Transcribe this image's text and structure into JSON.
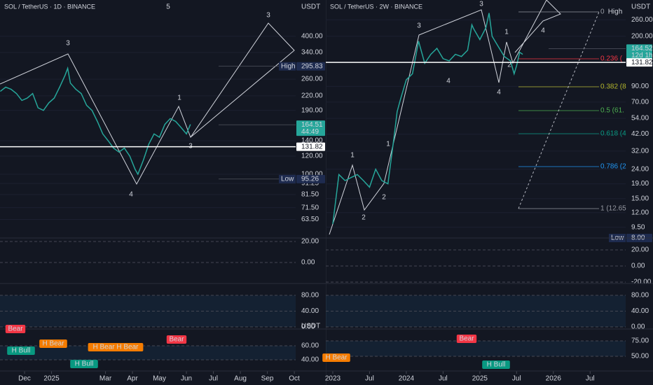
{
  "chart_data": [
    {
      "type": "line",
      "title": "SOL / TetherUS · 1D · BINANCE",
      "currency": "USDT",
      "color": "#26a69a",
      "log": true,
      "x": [
        -0.9,
        -0.7,
        -0.5,
        -0.3,
        -0.1,
        0.1,
        0.3,
        0.5,
        0.7,
        0.9,
        1.1,
        1.3,
        1.5,
        1.6,
        1.7,
        1.9,
        2.1,
        2.3,
        2.5,
        2.7,
        2.9,
        3.1,
        3.3,
        3.5,
        3.7,
        3.9,
        4.1,
        4.2,
        4.4,
        4.6,
        4.8,
        5.0,
        5.2,
        5.4,
        5.6,
        5.8,
        6.0,
        6.15
      ],
      "values": [
        230,
        240,
        235,
        225,
        210,
        215,
        225,
        195,
        190,
        205,
        215,
        240,
        270,
        290,
        250,
        235,
        225,
        200,
        190,
        170,
        150,
        140,
        130,
        125,
        130,
        120,
        105,
        100,
        115,
        135,
        150,
        145,
        165,
        175,
        170,
        160,
        150,
        165
      ],
      "xlim": [
        -0.91,
        10.05
      ],
      "ylim": [
        52.7,
        576
      ],
      "xticks": [
        {
          "value": 0,
          "label": "Dec"
        },
        {
          "value": 1,
          "label": "2025"
        },
        {
          "value": 3,
          "label": "Mar"
        },
        {
          "value": 4,
          "label": "Apr"
        },
        {
          "value": 5,
          "label": "May"
        },
        {
          "value": 6,
          "label": "Jun"
        },
        {
          "value": 7,
          "label": "Jul"
        },
        {
          "value": 8,
          "label": "Aug"
        },
        {
          "value": 9,
          "label": "Sep"
        },
        {
          "value": 10,
          "label": "Oct"
        }
      ],
      "yticks": [
        {
          "value": 400,
          "label": "400.00"
        },
        {
          "value": 340,
          "label": "340.00"
        },
        {
          "value": 260,
          "label": "260.00"
        },
        {
          "value": 220,
          "label": "220.00"
        },
        {
          "value": 190,
          "label": "190.00"
        },
        {
          "value": 140,
          "label": "140.00"
        },
        {
          "value": 120,
          "label": "120.00"
        },
        {
          "value": 100,
          "label": "100.00"
        },
        {
          "value": 91.25,
          "label": "91.25"
        },
        {
          "value": 81.5,
          "label": "81.50"
        },
        {
          "value": 71.5,
          "label": "71.50"
        },
        {
          "value": 63.5,
          "label": "63.50"
        }
      ],
      "price_tags": [
        {
          "name": "High",
          "value": 295.83,
          "color": "#1e2b4f"
        },
        {
          "value": 164.51,
          "sub": "44:49",
          "color": "#26a69a"
        },
        {
          "value": 131.82,
          "color": "#ffffff"
        },
        {
          "name": "Low",
          "value": 95.26,
          "color": "#1e2b4f"
        }
      ],
      "annotations": [
        "5",
        "3",
        "4",
        "1",
        "3",
        "3"
      ],
      "badges": [
        {
          "text": "Bear",
          "color": "#f23645"
        },
        {
          "text": "H Bull",
          "color": "#089981"
        },
        {
          "text": "H Bear",
          "color": "#f57c00"
        },
        {
          "text": "H Bear H Bear",
          "color": "#f57c00"
        },
        {
          "text": "H Bull",
          "color": "#089981"
        },
        {
          "text": "Bear",
          "color": "#f23645"
        }
      ],
      "panes": [
        {
          "ylim": [
            -20,
            23.3
          ],
          "yticks": [
            {
              "value": 20,
              "label": "20.00"
            },
            {
              "value": 0,
              "label": "0.00"
            }
          ]
        },
        {
          "ylim": [
            -5.3,
            110
          ],
          "yticks": [
            {
              "value": 80,
              "label": "80.00"
            },
            {
              "value": 40,
              "label": "40.00"
            },
            {
              "value": 0,
              "label": "0.00"
            }
          ]
        },
        {
          "ylim": [
            24,
            84
          ],
          "yticks": [
            {
              "value": 60,
              "label": "60.00"
            },
            {
              "value": 40,
              "label": "40.00"
            }
          ]
        }
      ]
    },
    {
      "type": "line",
      "title": "SOL / TetherUS · 2W · BINANCE",
      "currency": "USDT",
      "color": "#26a69a",
      "log": true,
      "x": [
        0,
        1,
        2,
        3,
        4,
        5,
        6,
        7,
        8,
        9,
        10,
        10.5,
        11,
        12,
        13,
        14,
        15,
        16,
        17,
        18,
        19,
        20,
        21,
        22,
        22.7,
        23,
        24,
        25,
        25.5,
        26,
        27,
        28,
        29,
        29.6,
        30,
        30.5,
        31
      ],
      "values": [
        10,
        22,
        20,
        21,
        22,
        20,
        18,
        24,
        20,
        19,
        40,
        60,
        72,
        100,
        110,
        185,
        130,
        150,
        165,
        140,
        135,
        150,
        145,
        160,
        240,
        225,
        190,
        230,
        290,
        200,
        170,
        145,
        135,
        110,
        125,
        155,
        150
      ],
      "xlim": [
        -1.14,
        47.8
      ],
      "ylim": [
        8,
        357
      ],
      "xticks": [
        {
          "value": 0,
          "label": "2023"
        },
        {
          "value": 6,
          "label": "Jul"
        },
        {
          "value": 12,
          "label": "2024"
        },
        {
          "value": 18,
          "label": "Jul"
        },
        {
          "value": 24,
          "label": "2025"
        },
        {
          "value": 30,
          "label": "Jul"
        },
        {
          "value": 36,
          "label": "2026"
        },
        {
          "value": 42,
          "label": "Jul"
        }
      ],
      "yticks": [
        {
          "value": 260,
          "label": "260.00"
        },
        {
          "value": 200,
          "label": "200.00"
        },
        {
          "value": 90,
          "label": "90.00"
        },
        {
          "value": 70,
          "label": "70.00"
        },
        {
          "value": 54,
          "label": "54.00"
        },
        {
          "value": 42,
          "label": "42.00"
        },
        {
          "value": 32,
          "label": "32.00"
        },
        {
          "value": 24,
          "label": "24.00"
        },
        {
          "value": 19,
          "label": "19.00"
        },
        {
          "value": 15,
          "label": "15.00"
        },
        {
          "value": 12,
          "label": "12.00"
        },
        {
          "value": 9.5,
          "label": "9.50"
        }
      ],
      "price_tags": [
        {
          "value": 164.52,
          "sub": "12d 1h",
          "color": "#26a69a"
        },
        {
          "value": 131.82,
          "color": "#ffffff"
        },
        {
          "name": "Low",
          "value": {
            "value": 8,
            "label": "8.00"
          },
          "color": "#1e2b4f"
        }
      ],
      "annotations": [
        "3",
        "1",
        "2",
        "2",
        "3",
        "1",
        "4",
        "4",
        "1",
        "2",
        "4",
        "High"
      ],
      "fib_labels": [
        "0",
        "0.236 (",
        "0.382 (8",
        "0.5 (61.",
        "0.618 (4",
        "0.786 (2",
        "1 (12.65"
      ],
      "badges": [
        {
          "text": "H Bear",
          "color": "#f57c00"
        },
        {
          "text": "Bear",
          "color": "#f23645"
        },
        {
          "text": "H Bull",
          "color": "#089981"
        }
      ],
      "panes": [
        {
          "ylim": [
            -21.7,
            34.8
          ],
          "yticks": [
            {
              "value": 20,
              "label": "20.00"
            },
            {
              "value": 0,
              "label": "0.00"
            },
            {
              "value": -20,
              "label": "-20.00"
            }
          ]
        },
        {
          "ylim": [
            -5.3,
            110
          ],
          "yticks": [
            {
              "value": 80,
              "label": "80.00"
            },
            {
              "value": 40,
              "label": "40.00"
            },
            {
              "value": 0,
              "label": "0.00"
            }
          ]
        },
        {
          "ylim": [
            26.1,
            94.3
          ],
          "yticks": [
            {
              "value": 75,
              "label": "75.00"
            },
            {
              "value": 50,
              "label": "50.00"
            }
          ]
        }
      ]
    }
  ]
}
